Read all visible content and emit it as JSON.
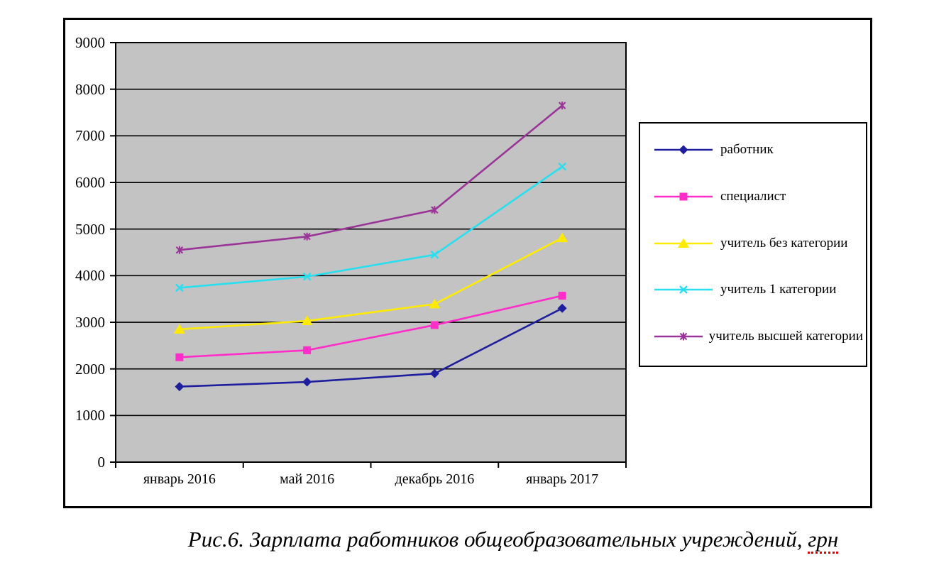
{
  "figure": {
    "caption_main": "Рис.6. Зарплата работников общеобразовательных учреждений, ",
    "caption_unit": "грн"
  },
  "chart_data": {
    "type": "line",
    "title": "",
    "xlabel": "",
    "ylabel": "",
    "categories": [
      "январь 2016",
      "май 2016",
      "декабрь 2016",
      "январь 2017"
    ],
    "series": [
      {
        "name": "работник",
        "color": "#1F1F9E",
        "marker": "diamond",
        "values": [
          1620,
          1720,
          1900,
          3300
        ]
      },
      {
        "name": "специалист",
        "color": "#FF2EC8",
        "marker": "square",
        "values": [
          2250,
          2400,
          2940,
          3570
        ]
      },
      {
        "name": "учитель без категории",
        "color": "#FFEB00",
        "marker": "triangle",
        "values": [
          2850,
          3030,
          3390,
          4810
        ]
      },
      {
        "name": "учитель 1 категории",
        "color": "#28DFF0",
        "marker": "x",
        "values": [
          3740,
          3980,
          4450,
          6340
        ]
      },
      {
        "name": "учитель высшей категории",
        "color": "#9A3598",
        "marker": "star",
        "values": [
          4550,
          4840,
          5410,
          7650
        ]
      }
    ],
    "ylim": [
      0,
      9000
    ],
    "ytick_step": 1000,
    "grid": "horizontal",
    "legend_position": "right",
    "plot_bg": "#C3C3C3",
    "axis_color": "#000000"
  }
}
